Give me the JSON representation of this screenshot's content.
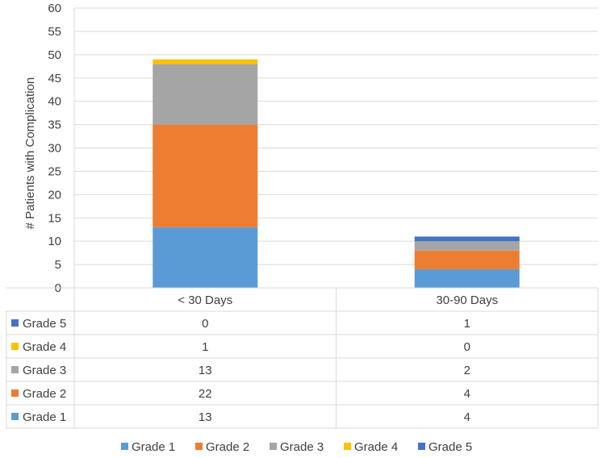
{
  "chart_data": {
    "type": "bar",
    "stacked": true,
    "categories": [
      "< 30 Days",
      "30-90 Days"
    ],
    "series": [
      {
        "name": "Grade 1",
        "values": [
          13,
          4
        ],
        "color": "#5b9bd5"
      },
      {
        "name": "Grade 2",
        "values": [
          22,
          4
        ],
        "color": "#ed7d31"
      },
      {
        "name": "Grade 3",
        "values": [
          13,
          2
        ],
        "color": "#a5a5a5"
      },
      {
        "name": "Grade 4",
        "values": [
          1,
          0
        ],
        "color": "#ffc000"
      },
      {
        "name": "Grade 5",
        "values": [
          0,
          1
        ],
        "color": "#4472c4"
      }
    ],
    "table_order": [
      "Grade 5",
      "Grade 4",
      "Grade 3",
      "Grade 2",
      "Grade 1"
    ],
    "ylabel": "# Patients with Complication",
    "ylim": [
      0,
      60
    ],
    "yticks": [
      0,
      5,
      10,
      15,
      20,
      25,
      30,
      35,
      40,
      45,
      50,
      55,
      60
    ],
    "grid": true,
    "legend_position": "bottom",
    "data_table": true
  }
}
